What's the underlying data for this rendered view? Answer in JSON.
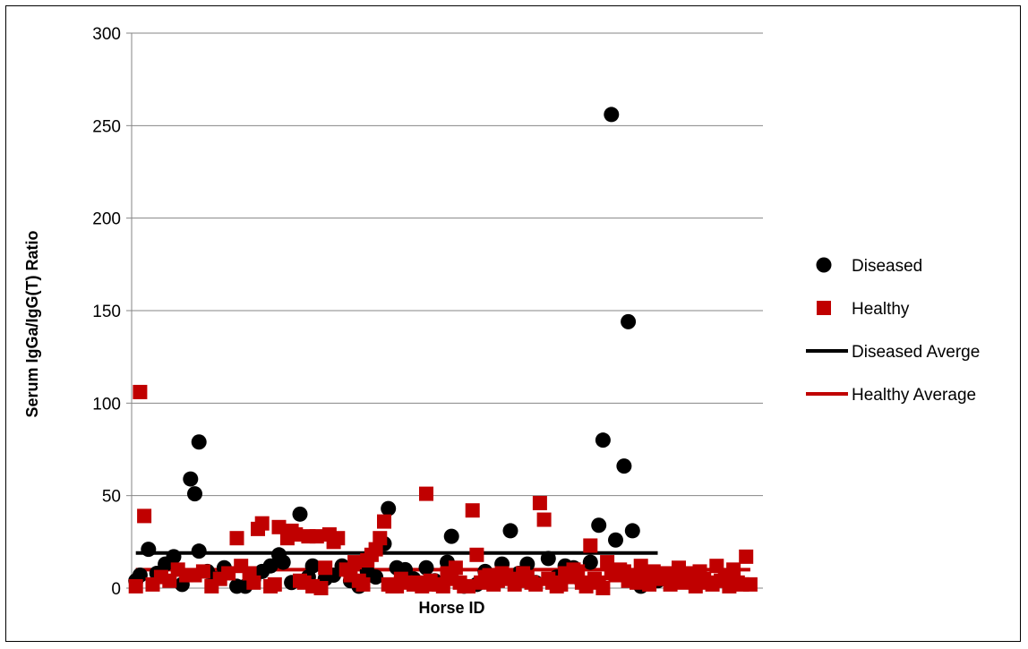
{
  "chart_data": {
    "type": "scatter",
    "title": "",
    "xlabel": "Horse ID",
    "ylabel": "Serum IgGa/IgG(T) Ratio",
    "ylim": [
      0,
      300
    ],
    "yticks": [
      0,
      50,
      100,
      150,
      200,
      250,
      300
    ],
    "grid": true,
    "legend_position": "right",
    "series": [
      {
        "name": "Diseased",
        "marker": "circle",
        "color": "#000000",
        "points": [
          [
            1,
            4
          ],
          [
            2,
            7
          ],
          [
            4,
            21
          ],
          [
            6,
            8
          ],
          [
            8,
            13
          ],
          [
            10,
            17
          ],
          [
            12,
            2
          ],
          [
            14,
            59
          ],
          [
            15,
            51
          ],
          [
            16,
            20
          ],
          [
            18,
            9
          ],
          [
            20,
            5
          ],
          [
            22,
            11
          ],
          [
            25,
            1
          ],
          [
            27,
            1
          ],
          [
            29,
            5
          ],
          [
            31,
            9
          ],
          [
            33,
            12
          ],
          [
            35,
            18
          ],
          [
            36,
            14
          ],
          [
            38,
            3
          ],
          [
            40,
            40
          ],
          [
            42,
            6
          ],
          [
            43,
            12
          ],
          [
            46,
            5
          ],
          [
            48,
            7
          ],
          [
            50,
            12
          ],
          [
            52,
            4
          ],
          [
            54,
            1
          ],
          [
            56,
            9
          ],
          [
            58,
            6
          ],
          [
            60,
            24
          ],
          [
            61,
            43
          ],
          [
            63,
            11
          ],
          [
            65,
            10
          ],
          [
            67,
            5
          ],
          [
            70,
            11
          ],
          [
            72,
            4
          ],
          [
            75,
            14
          ],
          [
            76,
            28
          ],
          [
            79,
            1
          ],
          [
            82,
            2
          ],
          [
            84,
            9
          ],
          [
            86,
            3
          ],
          [
            88,
            13
          ],
          [
            90,
            31
          ],
          [
            92,
            8
          ],
          [
            94,
            13
          ],
          [
            96,
            3
          ],
          [
            99,
            16
          ],
          [
            101,
            6
          ],
          [
            103,
            12
          ],
          [
            105,
            11
          ],
          [
            107,
            3
          ],
          [
            109,
            14
          ],
          [
            111,
            34
          ],
          [
            112,
            80
          ],
          [
            114,
            256
          ],
          [
            115,
            26
          ],
          [
            117,
            66
          ],
          [
            118,
            144
          ],
          [
            119,
            31
          ],
          [
            121,
            1
          ],
          [
            123,
            3
          ],
          [
            125,
            4
          ],
          [
            16,
            79
          ]
        ]
      },
      {
        "name": "Healthy",
        "marker": "square",
        "color": "#C00000",
        "points": [
          [
            1,
            1
          ],
          [
            2,
            106
          ],
          [
            3,
            39
          ],
          [
            5,
            2
          ],
          [
            7,
            6
          ],
          [
            9,
            4
          ],
          [
            11,
            10
          ],
          [
            13,
            7
          ],
          [
            15,
            7
          ],
          [
            17,
            9
          ],
          [
            19,
            1
          ],
          [
            21,
            5
          ],
          [
            23,
            8
          ],
          [
            25,
            27
          ],
          [
            26,
            12
          ],
          [
            28,
            8
          ],
          [
            29,
            3
          ],
          [
            30,
            32
          ],
          [
            31,
            35
          ],
          [
            33,
            1
          ],
          [
            34,
            2
          ],
          [
            35,
            33
          ],
          [
            37,
            27
          ],
          [
            38,
            31
          ],
          [
            39,
            29
          ],
          [
            40,
            4
          ],
          [
            41,
            3
          ],
          [
            42,
            28
          ],
          [
            43,
            1
          ],
          [
            44,
            28
          ],
          [
            45,
            0
          ],
          [
            46,
            11
          ],
          [
            47,
            29
          ],
          [
            48,
            25
          ],
          [
            49,
            27
          ],
          [
            51,
            10
          ],
          [
            52,
            7
          ],
          [
            53,
            14
          ],
          [
            54,
            4
          ],
          [
            55,
            2
          ],
          [
            56,
            15
          ],
          [
            57,
            18
          ],
          [
            58,
            21
          ],
          [
            59,
            27
          ],
          [
            60,
            36
          ],
          [
            61,
            2
          ],
          [
            62,
            1
          ],
          [
            63,
            1
          ],
          [
            64,
            5
          ],
          [
            65,
            3
          ],
          [
            67,
            2
          ],
          [
            68,
            3
          ],
          [
            69,
            1
          ],
          [
            70,
            51
          ],
          [
            71,
            4
          ],
          [
            72,
            2
          ],
          [
            73,
            2
          ],
          [
            74,
            1
          ],
          [
            75,
            8
          ],
          [
            76,
            5
          ],
          [
            77,
            11
          ],
          [
            78,
            3
          ],
          [
            79,
            1
          ],
          [
            80,
            1
          ],
          [
            81,
            42
          ],
          [
            82,
            18
          ],
          [
            83,
            3
          ],
          [
            84,
            6
          ],
          [
            85,
            7
          ],
          [
            86,
            2
          ],
          [
            87,
            4
          ],
          [
            88,
            8
          ],
          [
            89,
            7
          ],
          [
            90,
            5
          ],
          [
            91,
            2
          ],
          [
            92,
            4
          ],
          [
            93,
            8
          ],
          [
            94,
            6
          ],
          [
            95,
            3
          ],
          [
            96,
            2
          ],
          [
            97,
            46
          ],
          [
            98,
            37
          ],
          [
            99,
            5
          ],
          [
            100,
            3
          ],
          [
            101,
            1
          ],
          [
            102,
            2
          ],
          [
            103,
            8
          ],
          [
            104,
            6
          ],
          [
            105,
            10
          ],
          [
            106,
            9
          ],
          [
            107,
            3
          ],
          [
            108,
            1
          ],
          [
            109,
            23
          ],
          [
            110,
            5
          ],
          [
            111,
            3
          ],
          [
            112,
            0
          ],
          [
            113,
            14
          ],
          [
            114,
            8
          ],
          [
            115,
            7
          ],
          [
            116,
            10
          ],
          [
            117,
            9
          ],
          [
            118,
            4
          ],
          [
            119,
            7
          ],
          [
            120,
            3
          ],
          [
            121,
            12
          ],
          [
            122,
            8
          ],
          [
            123,
            2
          ],
          [
            124,
            9
          ],
          [
            125,
            5
          ],
          [
            126,
            7
          ],
          [
            127,
            8
          ],
          [
            128,
            2
          ],
          [
            129,
            4
          ],
          [
            130,
            11
          ],
          [
            131,
            3
          ],
          [
            132,
            8
          ],
          [
            133,
            6
          ],
          [
            134,
            1
          ],
          [
            135,
            9
          ],
          [
            136,
            5
          ],
          [
            137,
            3
          ],
          [
            138,
            2
          ],
          [
            139,
            12
          ],
          [
            140,
            4
          ],
          [
            141,
            7
          ],
          [
            142,
            1
          ],
          [
            143,
            10
          ],
          [
            144,
            3
          ],
          [
            145,
            2
          ],
          [
            146,
            17
          ],
          [
            147,
            2
          ]
        ]
      },
      {
        "name": "Diseased Averge",
        "type": "line",
        "color": "#000000",
        "points": [
          [
            1,
            19
          ],
          [
            125,
            19
          ]
        ]
      },
      {
        "name": "Healthy Average",
        "type": "line",
        "color": "#C00000",
        "points": [
          [
            1,
            10
          ],
          [
            147,
            10
          ]
        ]
      }
    ],
    "xlim": [
      0,
      150
    ]
  }
}
